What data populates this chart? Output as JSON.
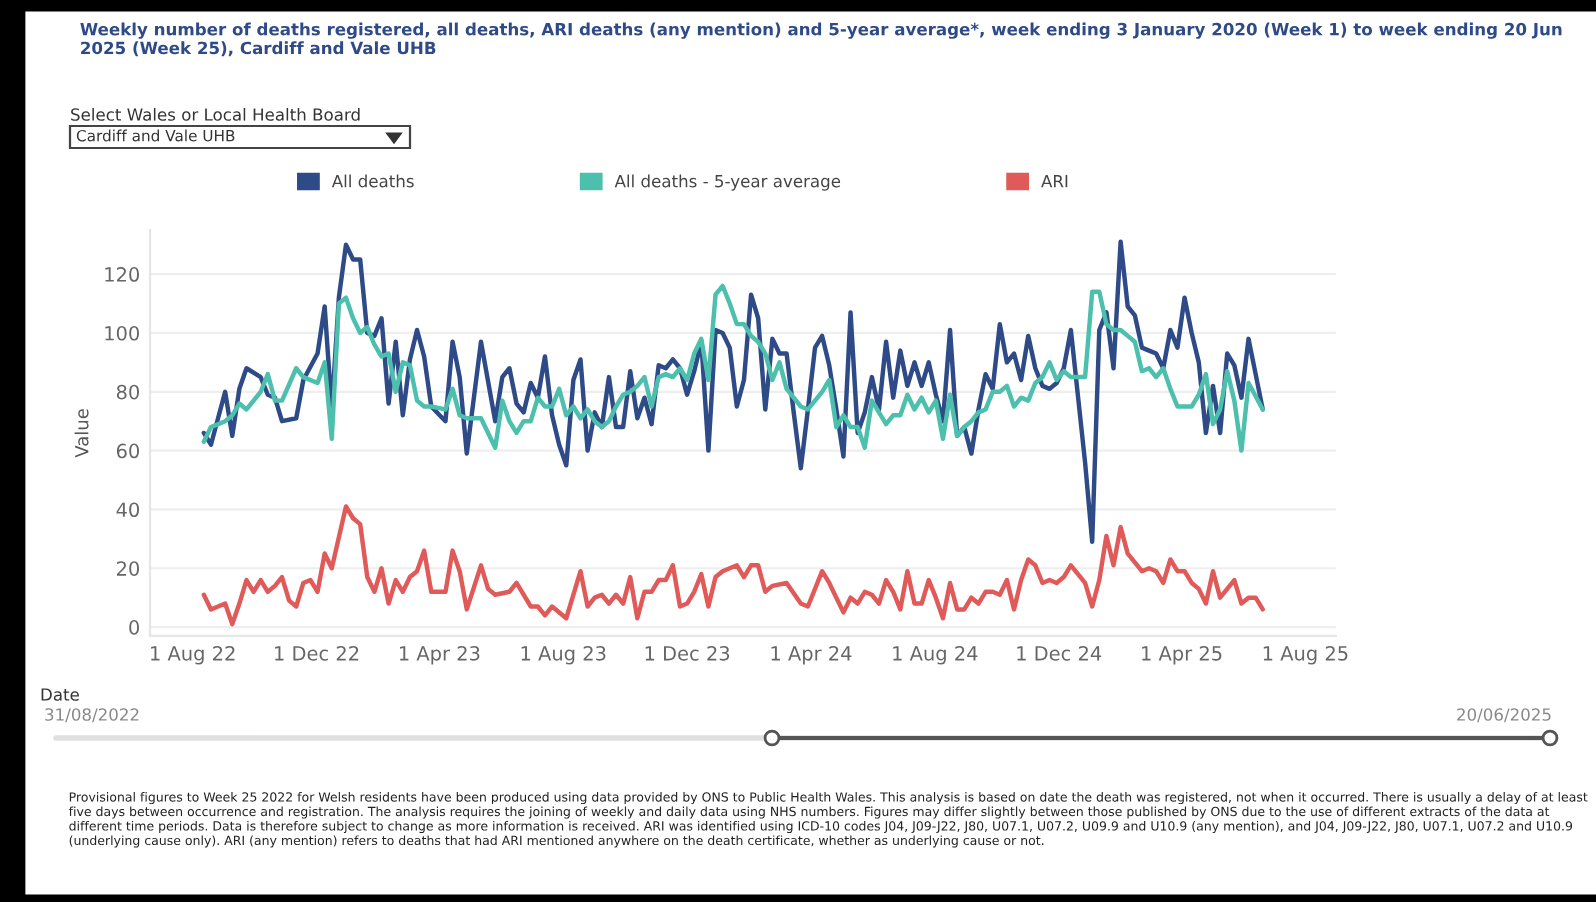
{
  "chart_data": {
    "type": "line",
    "title": "Weekly number of deaths registered, all deaths, ARI deaths (any mention) and 5-year average*, week ending 3 January 2020 (Week 1) to week ending 20 Jun 2025 (Week 25), Cardiff and Vale UHB",
    "ylabel": "Value",
    "series": [
      {
        "name": "All deaths",
        "color": "#2e4a87",
        "x": [
          "2022-08-12",
          "2022-08-19",
          "2022-09-02",
          "2022-09-09",
          "2022-09-16",
          "2022-09-23",
          "2022-10-07",
          "2022-10-14",
          "2022-10-21",
          "2022-10-28",
          "2022-11-11",
          "2022-11-18",
          "2022-12-02",
          "2022-12-09",
          "2022-12-16",
          "2022-12-23",
          "2022-12-30",
          "2023-01-06",
          "2023-01-13",
          "2023-01-20",
          "2023-01-27",
          "2023-02-03",
          "2023-02-10",
          "2023-02-17",
          "2023-02-24",
          "2023-03-03",
          "2023-03-10",
          "2023-03-17",
          "2023-03-24",
          "2023-04-07",
          "2023-04-14",
          "2023-04-21",
          "2023-04-28",
          "2023-05-12",
          "2023-05-26",
          "2023-06-02",
          "2023-06-09",
          "2023-06-16",
          "2023-06-23",
          "2023-06-30",
          "2023-07-07",
          "2023-07-14",
          "2023-07-21",
          "2023-07-28",
          "2023-08-04",
          "2023-08-11",
          "2023-08-18",
          "2023-08-25",
          "2023-09-01",
          "2023-09-08",
          "2023-09-15",
          "2023-09-22",
          "2023-09-29",
          "2023-10-06",
          "2023-10-13",
          "2023-10-20",
          "2023-10-27",
          "2023-11-03",
          "2023-11-10",
          "2023-11-17",
          "2023-11-24",
          "2023-12-01",
          "2023-12-08",
          "2023-12-15",
          "2023-12-22",
          "2023-12-29",
          "2024-01-05",
          "2024-01-12",
          "2024-01-19",
          "2024-01-26",
          "2024-02-02",
          "2024-02-09",
          "2024-02-16",
          "2024-02-23",
          "2024-03-01",
          "2024-03-08",
          "2024-03-15",
          "2024-03-22",
          "2024-03-29",
          "2024-04-05",
          "2024-04-12",
          "2024-04-19",
          "2024-04-26",
          "2024-05-03",
          "2024-05-10",
          "2024-05-17",
          "2024-05-24",
          "2024-05-31",
          "2024-06-07",
          "2024-06-14",
          "2024-06-21",
          "2024-06-28",
          "2024-07-05",
          "2024-07-12",
          "2024-07-19",
          "2024-07-26",
          "2024-08-02",
          "2024-08-09",
          "2024-08-16",
          "2024-08-23",
          "2024-08-30",
          "2024-09-06",
          "2024-09-13",
          "2024-09-20",
          "2024-09-27",
          "2024-10-04",
          "2024-10-11",
          "2024-10-18",
          "2024-10-25",
          "2024-11-01",
          "2024-11-08",
          "2024-11-15",
          "2024-11-22",
          "2024-11-29",
          "2024-12-06",
          "2024-12-13",
          "2024-12-27",
          "2025-01-03",
          "2025-01-10",
          "2025-01-17",
          "2025-01-24",
          "2025-01-31",
          "2025-02-07",
          "2025-02-14",
          "2025-02-21",
          "2025-02-28",
          "2025-03-07",
          "2025-03-14",
          "2025-03-21",
          "2025-03-28",
          "2025-04-04",
          "2025-04-11",
          "2025-04-18",
          "2025-04-25",
          "2025-05-02",
          "2025-05-09",
          "2025-05-16",
          "2025-05-23",
          "2025-05-30",
          "2025-06-06",
          "2025-06-20"
        ],
        "values": [
          66,
          62,
          80,
          65,
          81,
          88,
          85,
          79,
          78,
          70,
          71,
          84,
          93,
          109,
          74,
          112,
          130,
          125,
          125,
          100,
          99,
          105,
          76,
          97,
          72,
          91,
          101,
          92,
          75,
          70,
          97,
          85,
          59,
          97,
          70,
          85,
          88,
          76,
          73,
          83,
          78,
          92,
          72,
          62,
          55,
          84,
          91,
          60,
          73,
          68,
          85,
          68,
          68,
          87,
          71,
          78,
          69,
          89,
          88,
          91,
          88,
          79,
          87,
          97,
          60,
          101,
          100,
          95,
          75,
          84,
          113,
          105,
          74,
          98,
          93,
          93,
          73,
          54,
          74,
          95,
          99,
          89,
          74,
          58,
          107,
          66,
          73,
          85,
          74,
          97,
          78,
          94,
          82,
          90,
          82,
          90,
          79,
          70,
          101,
          65,
          68,
          59,
          74,
          86,
          81,
          103,
          90,
          93,
          84,
          99,
          88,
          82,
          81,
          83,
          88,
          101,
          56,
          29,
          101,
          107,
          88,
          131,
          109,
          106,
          95,
          94,
          93,
          88,
          101,
          95,
          112,
          100,
          90,
          66,
          82,
          66,
          93,
          89,
          78,
          98,
          74
        ]
      },
      {
        "name": "All deaths - 5-year average",
        "color": "#4dbfad",
        "x": [
          "2022-08-12",
          "2022-08-19",
          "2022-09-02",
          "2022-09-09",
          "2022-09-16",
          "2022-09-23",
          "2022-10-07",
          "2022-10-14",
          "2022-10-21",
          "2022-10-28",
          "2022-11-11",
          "2022-11-18",
          "2022-12-02",
          "2022-12-09",
          "2022-12-16",
          "2022-12-23",
          "2022-12-30",
          "2023-01-06",
          "2023-01-13",
          "2023-01-20",
          "2023-01-27",
          "2023-02-03",
          "2023-02-10",
          "2023-02-17",
          "2023-02-24",
          "2023-03-03",
          "2023-03-10",
          "2023-03-17",
          "2023-03-24",
          "2023-04-07",
          "2023-04-14",
          "2023-04-21",
          "2023-04-28",
          "2023-05-12",
          "2023-05-26",
          "2023-06-02",
          "2023-06-09",
          "2023-06-16",
          "2023-06-23",
          "2023-06-30",
          "2023-07-07",
          "2023-07-14",
          "2023-07-21",
          "2023-07-28",
          "2023-08-04",
          "2023-08-11",
          "2023-08-18",
          "2023-08-25",
          "2023-09-01",
          "2023-09-08",
          "2023-09-15",
          "2023-09-22",
          "2023-09-29",
          "2023-10-06",
          "2023-10-13",
          "2023-10-20",
          "2023-10-27",
          "2023-11-03",
          "2023-11-10",
          "2023-11-17",
          "2023-11-24",
          "2023-12-01",
          "2023-12-08",
          "2023-12-15",
          "2023-12-22",
          "2023-12-29",
          "2024-01-05",
          "2024-01-12",
          "2024-01-19",
          "2024-01-26",
          "2024-02-02",
          "2024-02-09",
          "2024-02-16",
          "2024-02-23",
          "2024-03-01",
          "2024-03-08",
          "2024-03-15",
          "2024-03-22",
          "2024-03-29",
          "2024-04-05",
          "2024-04-12",
          "2024-04-19",
          "2024-04-26",
          "2024-05-03",
          "2024-05-10",
          "2024-05-17",
          "2024-05-24",
          "2024-05-31",
          "2024-06-07",
          "2024-06-14",
          "2024-06-21",
          "2024-06-28",
          "2024-07-05",
          "2024-07-12",
          "2024-07-19",
          "2024-07-26",
          "2024-08-02",
          "2024-08-09",
          "2024-08-16",
          "2024-08-23",
          "2024-08-30",
          "2024-09-06",
          "2024-09-13",
          "2024-09-20",
          "2024-09-27",
          "2024-10-04",
          "2024-10-11",
          "2024-10-18",
          "2024-10-25",
          "2024-11-01",
          "2024-11-08",
          "2024-11-15",
          "2024-11-22",
          "2024-11-29",
          "2024-12-06",
          "2024-12-13",
          "2024-12-27",
          "2025-01-03",
          "2025-01-10",
          "2025-01-17",
          "2025-01-24",
          "2025-01-31",
          "2025-02-07",
          "2025-02-14",
          "2025-02-21",
          "2025-02-28",
          "2025-03-07",
          "2025-03-14",
          "2025-03-21",
          "2025-03-28",
          "2025-04-04",
          "2025-04-11",
          "2025-04-18",
          "2025-04-25",
          "2025-05-02",
          "2025-05-09",
          "2025-05-16",
          "2025-05-23",
          "2025-05-30",
          "2025-06-06",
          "2025-06-20"
        ],
        "values": [
          63,
          68,
          70,
          72,
          76,
          74,
          80,
          86,
          77,
          77,
          88,
          85,
          83,
          90,
          64,
          110,
          112,
          105,
          100,
          102,
          96,
          92,
          93,
          80,
          90,
          89,
          77,
          75,
          75,
          74,
          81,
          72,
          71,
          71,
          61,
          77,
          70,
          66,
          70,
          70,
          78,
          75,
          75,
          81,
          72,
          75,
          71,
          74,
          70,
          68,
          70,
          75,
          79,
          80,
          82,
          85,
          75,
          85,
          86,
          85,
          88,
          84,
          93,
          98,
          84,
          113,
          116,
          110,
          103,
          103,
          99,
          97,
          93,
          84,
          90,
          81,
          78,
          75,
          74,
          77,
          80,
          84,
          68,
          72,
          68,
          68,
          61,
          77,
          73,
          69,
          72,
          72,
          79,
          74,
          78,
          73,
          77,
          64,
          79,
          65,
          68,
          70,
          73,
          74,
          80,
          80,
          82,
          75,
          78,
          77,
          83,
          85,
          90,
          84,
          87,
          85,
          85,
          114,
          114,
          103,
          101,
          101,
          99,
          97,
          87,
          88,
          85,
          88,
          81,
          75,
          75,
          75,
          79,
          86,
          69,
          74,
          87,
          77,
          60,
          83,
          74
        ]
      },
      {
        "name": "ARI",
        "color": "#e05a5a",
        "x": [
          "2022-08-12",
          "2022-08-19",
          "2022-09-02",
          "2022-09-09",
          "2022-09-16",
          "2022-09-23",
          "2022-09-30",
          "2022-10-07",
          "2022-10-14",
          "2022-10-21",
          "2022-10-28",
          "2022-11-04",
          "2022-11-11",
          "2022-11-18",
          "2022-11-25",
          "2022-12-02",
          "2022-12-09",
          "2022-12-16",
          "2022-12-30",
          "2023-01-06",
          "2023-01-13",
          "2023-01-20",
          "2023-01-27",
          "2023-02-03",
          "2023-02-10",
          "2023-02-17",
          "2023-02-24",
          "2023-03-03",
          "2023-03-10",
          "2023-03-17",
          "2023-03-24",
          "2023-04-07",
          "2023-04-14",
          "2023-04-21",
          "2023-04-28",
          "2023-05-12",
          "2023-05-19",
          "2023-05-26",
          "2023-06-09",
          "2023-06-16",
          "2023-06-30",
          "2023-07-07",
          "2023-07-14",
          "2023-07-21",
          "2023-08-04",
          "2023-08-18",
          "2023-08-25",
          "2023-09-01",
          "2023-09-08",
          "2023-09-15",
          "2023-09-22",
          "2023-09-29",
          "2023-10-06",
          "2023-10-13",
          "2023-10-20",
          "2023-10-27",
          "2023-11-03",
          "2023-11-10",
          "2023-11-17",
          "2023-11-24",
          "2023-12-01",
          "2023-12-08",
          "2023-12-15",
          "2023-12-22",
          "2023-12-29",
          "2024-01-05",
          "2024-01-12",
          "2024-01-19",
          "2024-01-26",
          "2024-02-02",
          "2024-02-09",
          "2024-02-16",
          "2024-02-23",
          "2024-03-08",
          "2024-03-22",
          "2024-03-29",
          "2024-04-12",
          "2024-04-19",
          "2024-04-26",
          "2024-05-03",
          "2024-05-10",
          "2024-05-17",
          "2024-05-24",
          "2024-05-31",
          "2024-06-07",
          "2024-06-14",
          "2024-06-21",
          "2024-06-28",
          "2024-07-05",
          "2024-07-12",
          "2024-07-19",
          "2024-07-26",
          "2024-08-02",
          "2024-08-09",
          "2024-08-16",
          "2024-08-23",
          "2024-08-30",
          "2024-09-06",
          "2024-09-13",
          "2024-09-20",
          "2024-09-27",
          "2024-10-04",
          "2024-10-11",
          "2024-10-18",
          "2024-10-25",
          "2024-11-01",
          "2024-11-08",
          "2024-11-15",
          "2024-11-22",
          "2024-11-29",
          "2024-12-06",
          "2024-12-13",
          "2024-12-27",
          "2025-01-03",
          "2025-01-10",
          "2025-01-17",
          "2025-01-24",
          "2025-01-31",
          "2025-02-07",
          "2025-02-14",
          "2025-02-21",
          "2025-02-28",
          "2025-03-07",
          "2025-03-14",
          "2025-03-21",
          "2025-03-28",
          "2025-04-04",
          "2025-04-11",
          "2025-04-18",
          "2025-04-25",
          "2025-05-02",
          "2025-05-09",
          "2025-05-16",
          "2025-05-23",
          "2025-05-30",
          "2025-06-06",
          "2025-06-13",
          "2025-06-20"
        ],
        "values": [
          11,
          6,
          8,
          1,
          8,
          16,
          12,
          16,
          12,
          14,
          17,
          9,
          7,
          15,
          16,
          12,
          25,
          20,
          41,
          37,
          35,
          17,
          12,
          20,
          8,
          16,
          12,
          17,
          19,
          26,
          12,
          12,
          26,
          19,
          6,
          21,
          13,
          11,
          12,
          15,
          7,
          7,
          4,
          7,
          3,
          19,
          7,
          10,
          11,
          8,
          11,
          8,
          17,
          3,
          12,
          12,
          16,
          16,
          21,
          7,
          8,
          12,
          18,
          7,
          17,
          19,
          20,
          21,
          17,
          21,
          21,
          12,
          14,
          15,
          8,
          7,
          19,
          15,
          10,
          5,
          10,
          8,
          12,
          11,
          8,
          16,
          12,
          6,
          19,
          8,
          8,
          16,
          10,
          3,
          15,
          6,
          6,
          10,
          8,
          12,
          12,
          11,
          16,
          6,
          16,
          23,
          21,
          15,
          16,
          15,
          17,
          21,
          15,
          7,
          16,
          31,
          21,
          34,
          25,
          22,
          19,
          20,
          19,
          15,
          23,
          19,
          19,
          15,
          13,
          8,
          19,
          10,
          13,
          16,
          8,
          10,
          10,
          6
        ]
      }
    ],
    "xlim": [
      "2022-06-20",
      "2025-08-31"
    ],
    "xticks": [
      {
        "value": "2022-08-01",
        "label": "1 Aug 22"
      },
      {
        "value": "2022-12-01",
        "label": "1 Dec 22"
      },
      {
        "value": "2023-04-01",
        "label": "1 Apr 23"
      },
      {
        "value": "2023-08-01",
        "label": "1 Aug 23"
      },
      {
        "value": "2023-12-01",
        "label": "1 Dec 23"
      },
      {
        "value": "2024-04-01",
        "label": "1 Apr 24"
      },
      {
        "value": "2024-08-01",
        "label": "1 Aug 24"
      },
      {
        "value": "2024-12-01",
        "label": "1 Dec 24"
      },
      {
        "value": "2025-04-01",
        "label": "1 Apr 25"
      },
      {
        "value": "2025-08-01",
        "label": "1 Aug 25"
      }
    ],
    "ylim": [
      -3,
      135
    ],
    "yticks": [
      0,
      20,
      40,
      60,
      80,
      100,
      120
    ],
    "grid": "y",
    "legend": "top",
    "marker": "none",
    "line_style": "solid",
    "annotations": [
      "Select Wales or Local Health Board",
      "Cardiff and Vale UHB",
      "Date",
      "31/08/2022",
      "20/06/2025",
      "Provisional figures to Week 25 2022 for Welsh residents have been produced using data provided by ONS to Public Health Wales. This analysis is based on date the death was registered, not when it occurred. There is usually a delay of at least five days between occurrence and registration. The analysis requires the joining of weekly and daily data using NHS numbers. Figures may differ slightly between those published by ONS due to the use of different extracts of the data at different time periods. Data is therefore subject to change as more information is received. ARI was identified using ICD-10 codes J04, J09-J22, J80, U07.1, U07.2, U09.9 and U10.9 (any mention), and J04, J09-J22, J80, U07.1, U07.2 and U10.9 (underlying cause only). ARI (any mention) refers to deaths that had ARI mentioned anywhere on the death certificate, whether as underlying cause or not."
    ]
  }
}
